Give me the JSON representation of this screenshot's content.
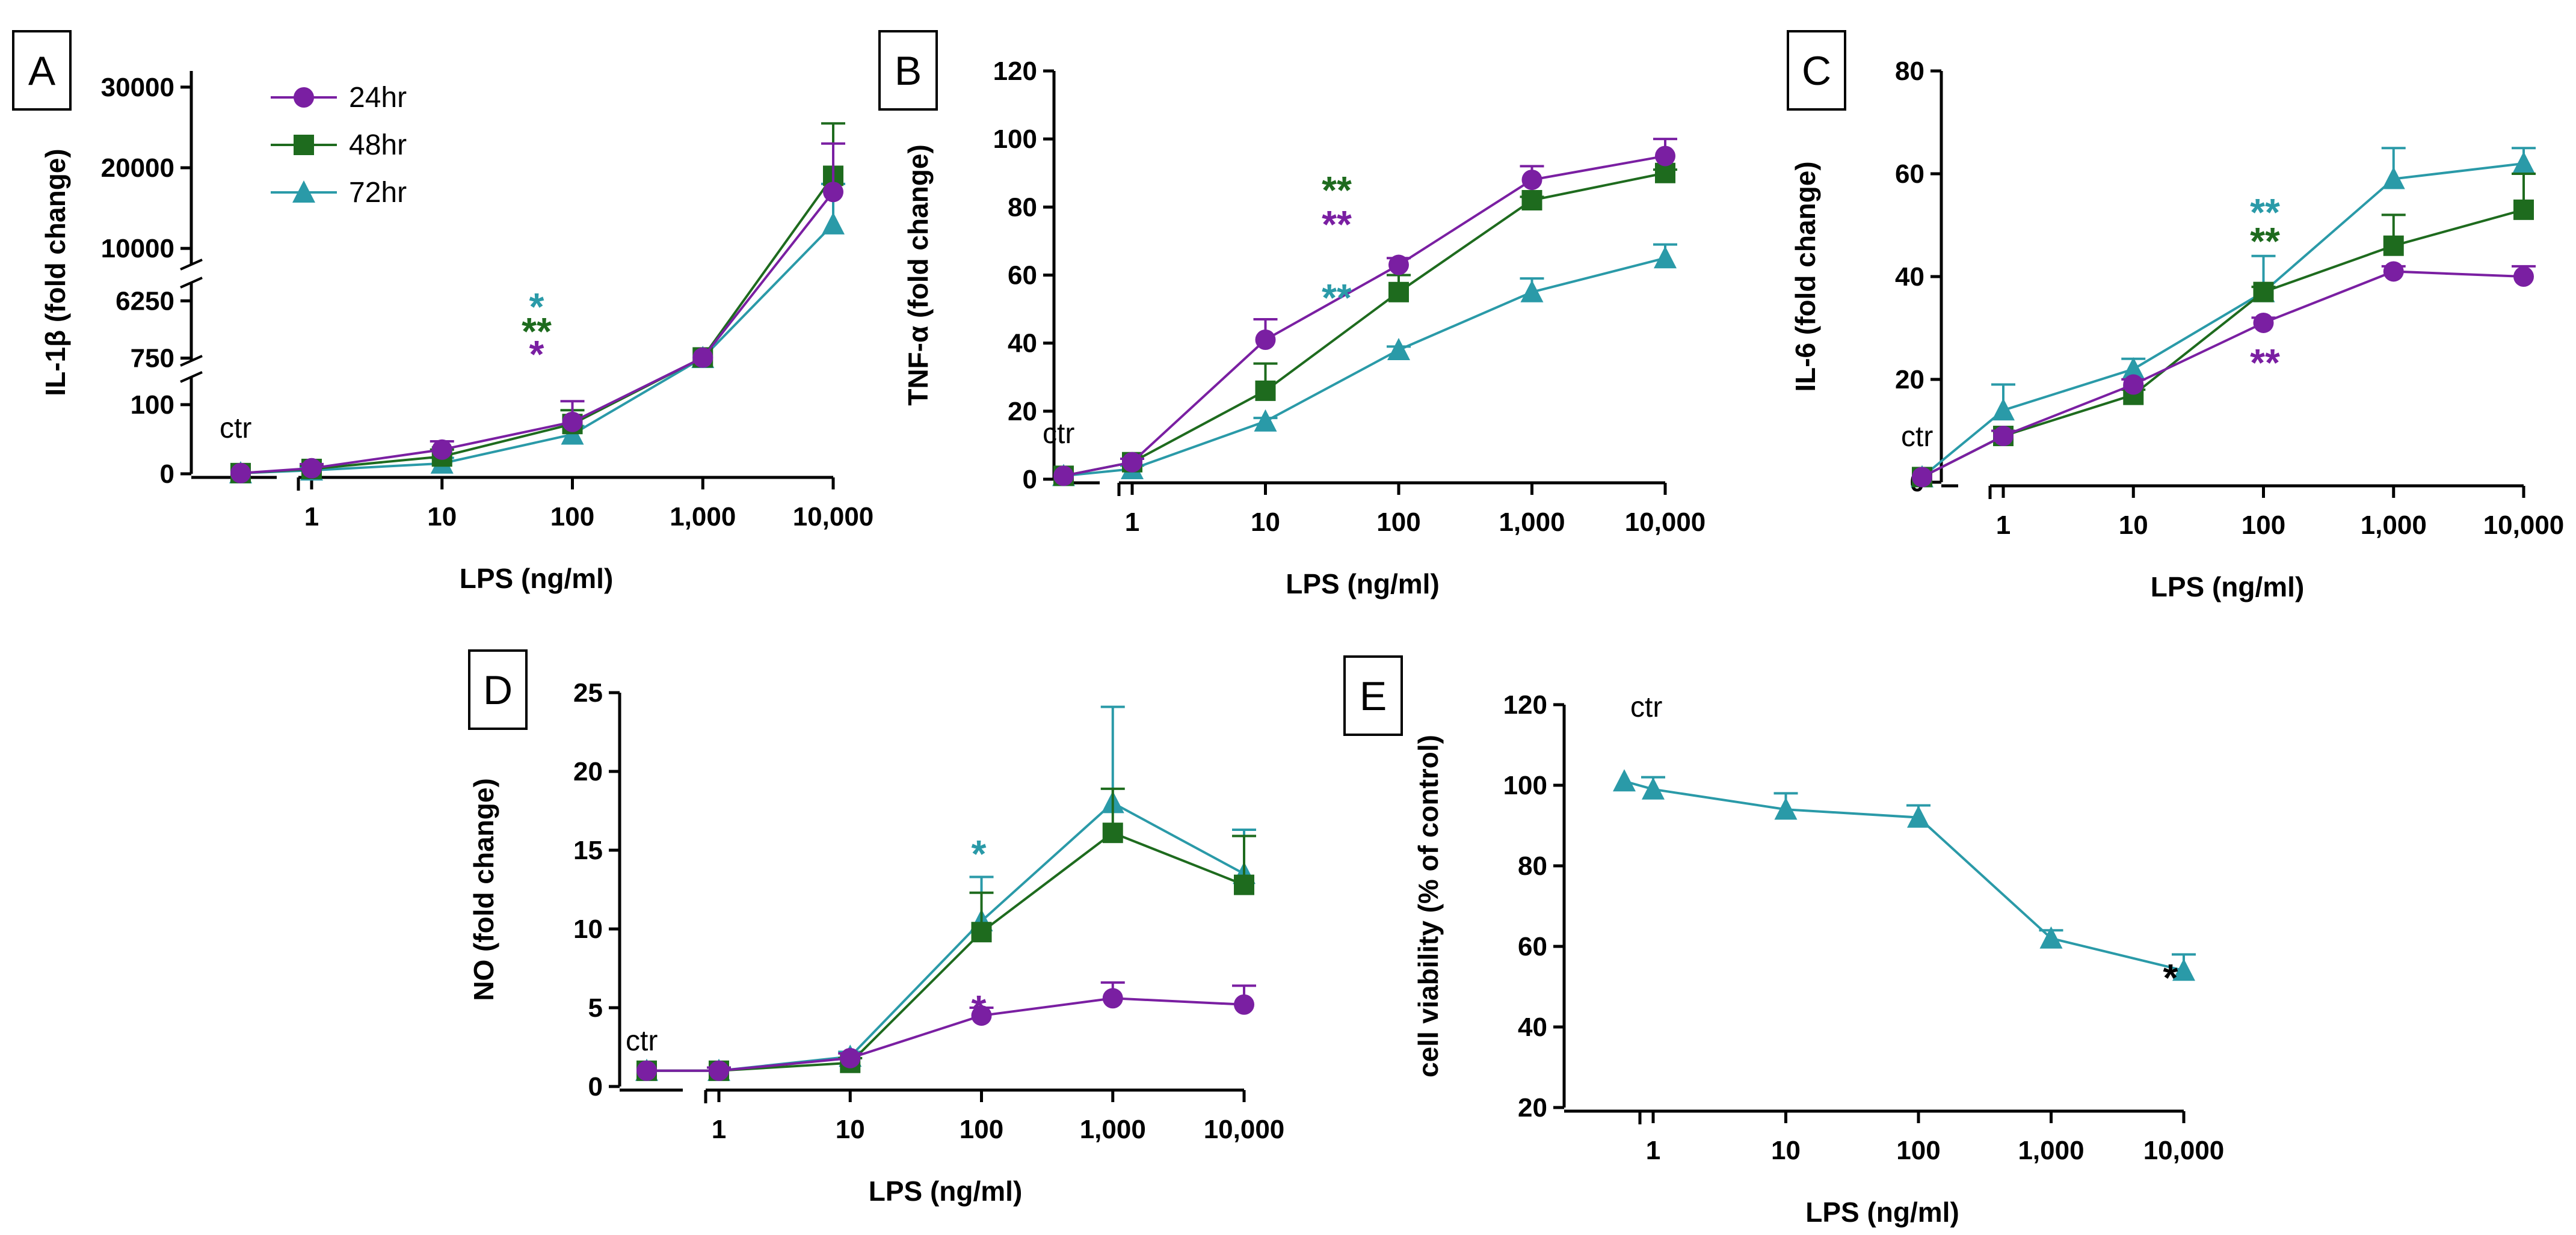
{
  "colors": {
    "24hr": "#7a1fa2",
    "48hr": "#1e6b1e",
    "72hr": "#2a9aa8",
    "axis": "#000000"
  },
  "legend": [
    {
      "key": "24hr",
      "label": "24hr",
      "marker": "circle"
    },
    {
      "key": "48hr",
      "label": "48hr",
      "marker": "square"
    },
    {
      "key": "72hr",
      "label": "72hr",
      "marker": "triangle"
    }
  ],
  "chart_data": [
    {
      "panel": "A",
      "type": "line",
      "xlabel": "LPS (ng/ml)",
      "ylabel": "IL-1β (fold change)",
      "ctr_label": "ctr",
      "x_ticks": [
        "1",
        "10",
        "100",
        "1,000",
        "10,000"
      ],
      "y_segments": [
        {
          "range": [
            0,
            140
          ],
          "ticks": [
            "0",
            "100"
          ]
        },
        {
          "range": [
            500,
            8000
          ],
          "ticks": [
            "750",
            "6250"
          ]
        },
        {
          "range": [
            8000,
            32000
          ],
          "ticks": [
            "10000",
            "20000",
            "30000"
          ]
        }
      ],
      "series": [
        {
          "name": "24hr",
          "ctr": 1,
          "values": [
            8,
            35,
            75,
            800,
            17000
          ],
          "err": [
            6,
            12,
            30,
            0,
            6000
          ]
        },
        {
          "name": "48hr",
          "ctr": 1,
          "values": [
            7,
            25,
            72,
            820,
            19000
          ],
          "err": [
            5,
            10,
            20,
            0,
            6500
          ]
        },
        {
          "name": "72hr",
          "ctr": 1,
          "values": [
            5,
            15,
            57,
            780,
            13000
          ],
          "err": [
            4,
            8,
            12,
            0,
            5000
          ]
        }
      ],
      "annotations": [
        {
          "x": "100",
          "text": "*",
          "series": "72hr"
        },
        {
          "x": "100",
          "text": "**",
          "series": "48hr"
        },
        {
          "x": "100",
          "text": "*",
          "series": "24hr"
        }
      ]
    },
    {
      "panel": "B",
      "type": "line",
      "xlabel": "LPS (ng/ml)",
      "ylabel": "TNF-α (fold change)",
      "ctr_label": "ctr",
      "x_ticks": [
        "1",
        "10",
        "100",
        "1,000",
        "10,000"
      ],
      "ylim": [
        0,
        120
      ],
      "y_ticks": [
        "0",
        "20",
        "40",
        "60",
        "80",
        "100",
        "120"
      ],
      "series": [
        {
          "name": "24hr",
          "ctr": 1,
          "values": [
            5,
            41,
            63,
            88,
            95
          ],
          "err": [
            1,
            6,
            2,
            4,
            5
          ]
        },
        {
          "name": "48hr",
          "ctr": 1,
          "values": [
            5,
            26,
            55,
            82,
            90
          ],
          "err": [
            1,
            8,
            5,
            1,
            1
          ]
        },
        {
          "name": "72hr",
          "ctr": 1,
          "values": [
            3,
            17,
            38,
            55,
            65
          ],
          "err": [
            1,
            1,
            1,
            4,
            4
          ]
        }
      ],
      "annotations": [
        {
          "x": "100",
          "text": "**",
          "series": "48hr"
        },
        {
          "x": "100",
          "text": "**",
          "series": "24hr"
        },
        {
          "x": "100",
          "text": "**",
          "series": "72hr"
        }
      ]
    },
    {
      "panel": "C",
      "type": "line",
      "xlabel": "LPS (ng/ml)",
      "ylabel": "IL-6 (fold change)",
      "ctr_label": "ctr",
      "x_ticks": [
        "1",
        "10",
        "100",
        "1,000",
        "10,000"
      ],
      "ylim": [
        0,
        80
      ],
      "y_ticks": [
        "0",
        "20",
        "40",
        "60",
        "80"
      ],
      "series": [
        {
          "name": "24hr",
          "ctr": 1,
          "values": [
            9,
            19,
            31,
            41,
            40
          ],
          "err": [
            1,
            1,
            1,
            1,
            2
          ]
        },
        {
          "name": "48hr",
          "ctr": 1,
          "values": [
            9,
            17,
            37,
            46,
            53
          ],
          "err": [
            1,
            1,
            1,
            6,
            7
          ]
        },
        {
          "name": "72hr",
          "ctr": 1,
          "values": [
            14,
            22,
            37,
            59,
            62
          ],
          "err": [
            5,
            2,
            7,
            6,
            3
          ]
        }
      ],
      "annotations": [
        {
          "x": "100",
          "text": "**",
          "series": "72hr"
        },
        {
          "x": "100",
          "text": "**",
          "series": "48hr"
        },
        {
          "x": "100",
          "text": "**",
          "series": "24hr"
        }
      ]
    },
    {
      "panel": "D",
      "type": "line",
      "xlabel": "LPS (ng/ml)",
      "ylabel": "NO (fold change)",
      "ctr_label": "ctr",
      "x_ticks": [
        "1",
        "10",
        "100",
        "1,000",
        "10,000"
      ],
      "ylim": [
        0,
        25
      ],
      "y_ticks": [
        "0",
        "5",
        "10",
        "15",
        "20",
        "25"
      ],
      "series": [
        {
          "name": "24hr",
          "ctr": 1,
          "values": [
            1,
            1.8,
            4.5,
            5.6,
            5.2
          ],
          "err": [
            0.2,
            0.3,
            0.5,
            1.0,
            1.2
          ]
        },
        {
          "name": "48hr",
          "ctr": 1,
          "values": [
            1,
            1.5,
            9.8,
            16.1,
            12.8
          ],
          "err": [
            0.2,
            0.3,
            2.5,
            2.8,
            3.1
          ]
        },
        {
          "name": "72hr",
          "ctr": 1,
          "values": [
            1,
            1.9,
            10.5,
            18,
            13.5
          ],
          "err": [
            0.2,
            0.3,
            2.8,
            6.1,
            2.8
          ]
        }
      ],
      "annotations": [
        {
          "x": "100",
          "text": "*",
          "series": "72hr"
        },
        {
          "x": "100",
          "text": "*",
          "series": "24hr"
        }
      ]
    },
    {
      "panel": "E",
      "type": "line",
      "xlabel": "LPS (ng/ml)",
      "ylabel": "cell viability (% of control)",
      "ctr_label": "ctr",
      "x_ticks": [
        "1",
        "10",
        "100",
        "1,000",
        "10,000"
      ],
      "ylim": [
        20,
        120
      ],
      "y_ticks": [
        "20",
        "40",
        "60",
        "80",
        "100",
        "120"
      ],
      "series": [
        {
          "name": "72hr",
          "ctr": 101,
          "values": [
            99,
            94,
            92,
            62,
            54
          ],
          "err": [
            3,
            4,
            3,
            2,
            4
          ]
        }
      ],
      "annotations": [
        {
          "x": "10,000",
          "text": "*",
          "series": "axis"
        }
      ]
    }
  ]
}
